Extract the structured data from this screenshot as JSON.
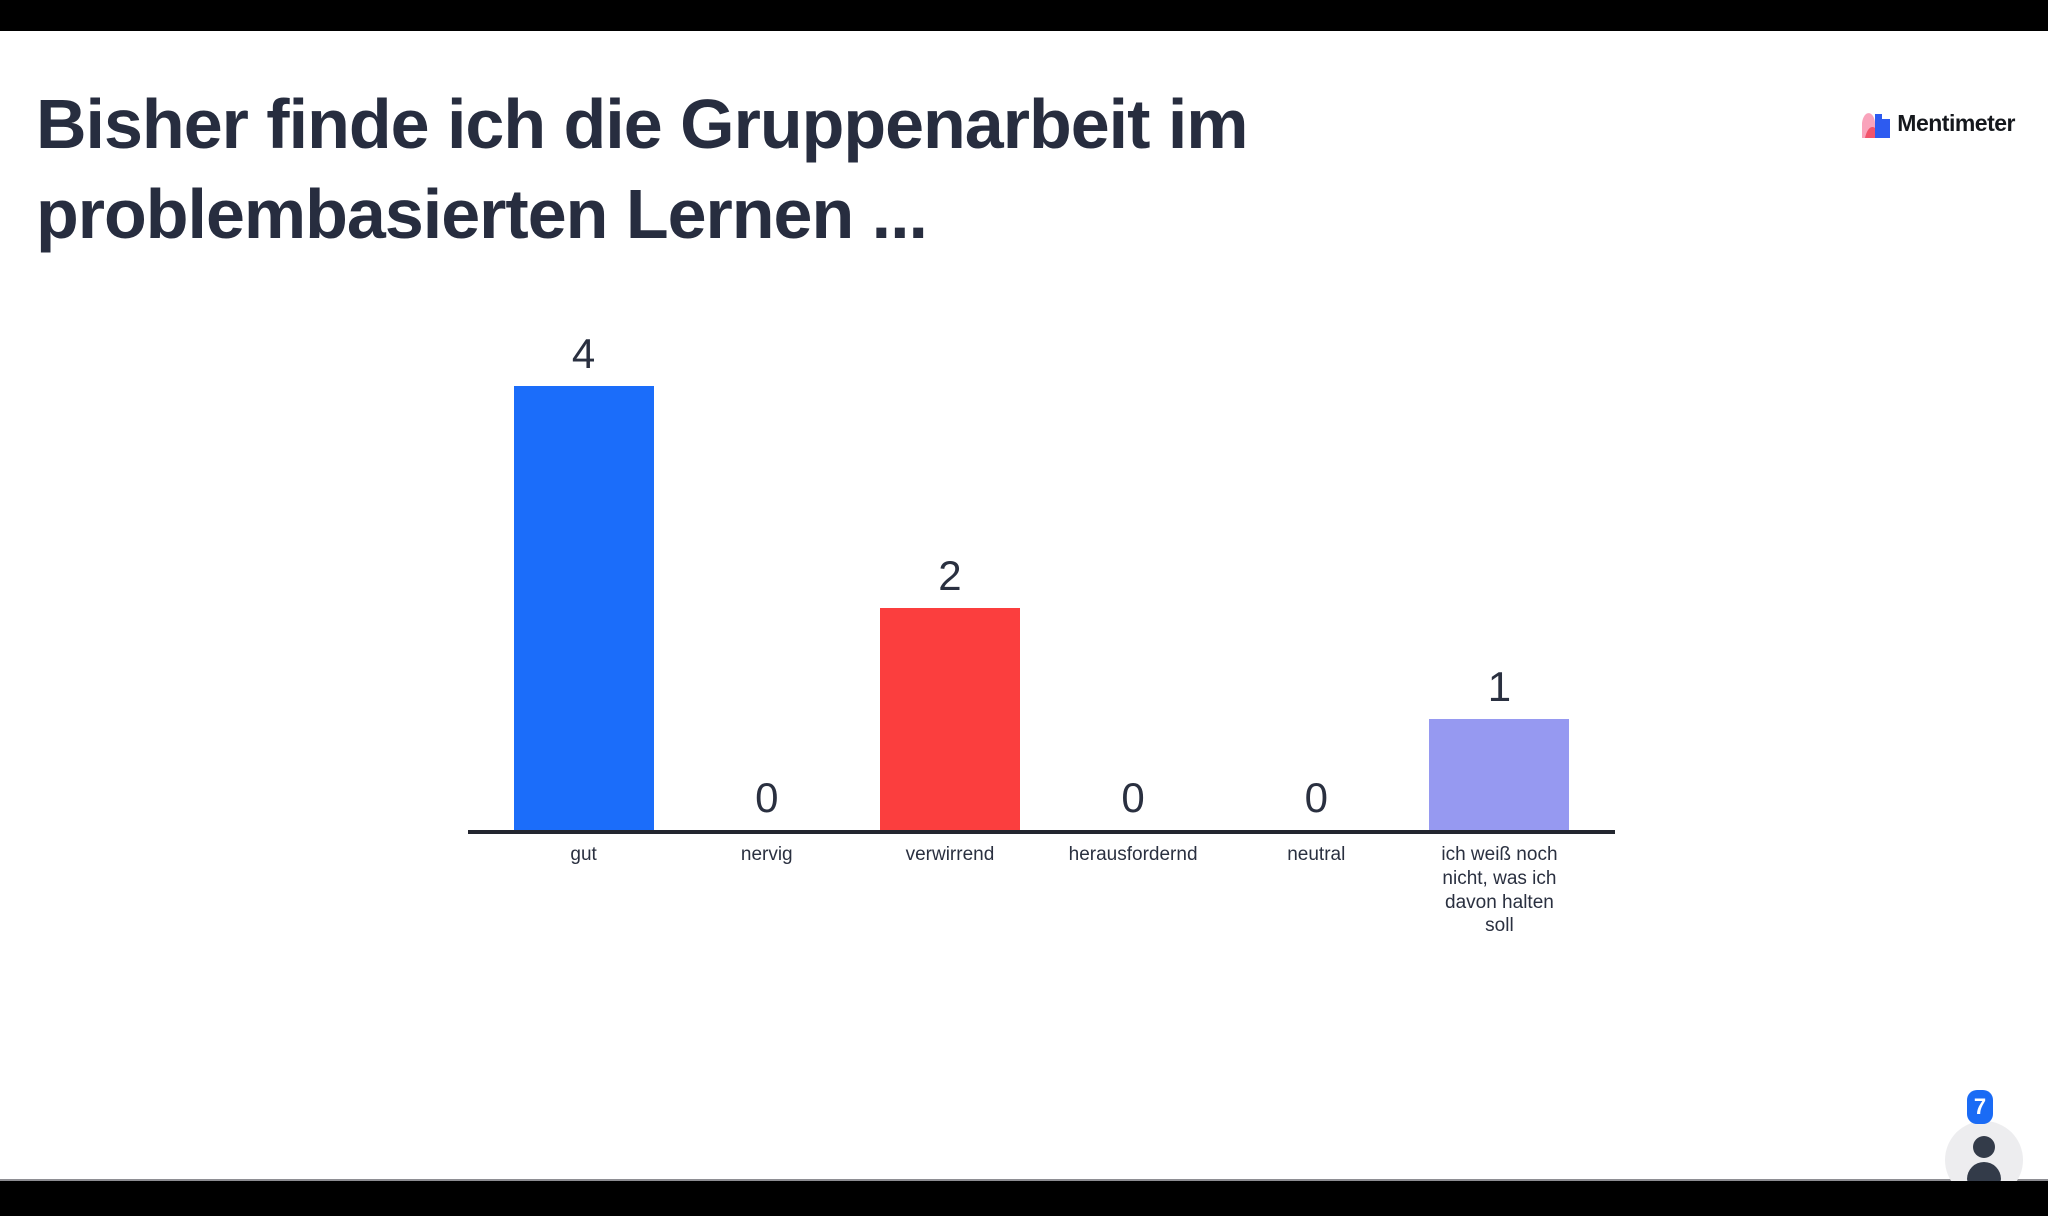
{
  "slide": {
    "title_line1": "Bisher finde ich die Gruppenarbeit im",
    "title_line2": "problembasierten Lernen ..."
  },
  "brand": {
    "name": "Mentimeter",
    "logo_colors": {
      "light_pink": "#f9a3bb",
      "red_pink": "#f2546b",
      "blue": "#2d5bf0"
    }
  },
  "participants": {
    "count": "7"
  },
  "colors": {
    "title_text": "#272d3f",
    "axis": "#23262f",
    "label_text": "#2a3040",
    "badge_blue": "#1a6bf5",
    "presence_circle": "#ededef"
  },
  "chart_data": {
    "type": "bar",
    "title": "Bisher finde ich die Gruppenarbeit im problembasierten Lernen ...",
    "categories": [
      "gut",
      "nervig",
      "verwirrend",
      "herausfordernd",
      "neutral",
      "ich weiß noch nicht, was ich davon halten soll"
    ],
    "values": [
      4,
      0,
      2,
      0,
      0,
      1
    ],
    "bar_colors": [
      "#1b6dfa",
      "#c9cde6",
      "#fb3e3e",
      "#c9cde6",
      "#c9cde6",
      "#9699f1"
    ],
    "value_labels": [
      "4",
      "0",
      "2",
      "0",
      "0",
      "1"
    ],
    "xlabel": "",
    "ylabel": "",
    "ylim": [
      0,
      4
    ],
    "grid": false,
    "legend": false
  }
}
